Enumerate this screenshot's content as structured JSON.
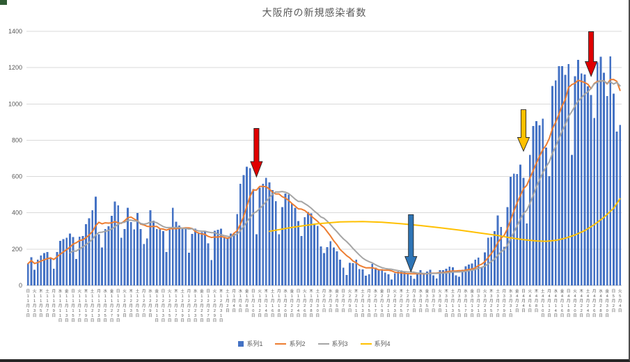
{
  "window": {
    "corner_accent_color": "#2F5B33"
  },
  "legend": {
    "position": "bottom"
  },
  "chart_data": {
    "type": "combo-bar-line",
    "title": "大阪府の新規感染者数",
    "x_start_date": "2020-11-01",
    "x_end_date": "2021-05-04",
    "x_tick_every_days": 2,
    "weekday_chars": "日月火水木金土",
    "x_label_format": "曜日 + M月D日 (vertical)",
    "ylim": [
      0,
      1400
    ],
    "ytick_step": 200,
    "grid": "horizontal-only",
    "gridline_color": "#D9D9D9",
    "axis_text_color": "#595959",
    "legend_position": "bottom",
    "series": [
      {
        "name": "系列1",
        "type": "bar",
        "color": "#4472C4",
        "values": [
          120,
          155,
          87,
          142,
          165,
          178,
          185,
          152,
          93,
          185,
          246,
          256,
          263,
          285,
          266,
          146,
          269,
          273,
          338,
          370,
          415,
          490,
          281,
          210,
          310,
          326,
          383,
          463,
          441,
          262,
          310,
          427,
          350,
          308,
          399,
          310,
          228,
          258,
          415,
          357,
          310,
          308,
          300,
          185,
          306,
          427,
          351,
          330,
          310,
          315,
          180,
          283,
          312,
          289,
          294,
          299,
          233,
          140,
          302,
          307,
          313,
          262,
          258,
          286,
          287,
          394,
          560,
          608,
          654,
          647,
          532,
          281,
          538,
          560,
          592,
          568,
          525,
          464,
          282,
          431,
          506,
          501,
          450,
          428,
          355,
          273,
          375,
          405,
          397,
          338,
          328,
          214,
          178,
          211,
          244,
          209,
          188,
          142,
          98,
          57,
          124,
          122,
          141,
          91,
          89,
          54,
          62,
          119,
          97,
          89,
          91,
          71,
          62,
          33,
          67,
          76,
          82,
          72,
          65,
          54,
          36,
          64,
          84,
          70,
          77,
          86,
          56,
          38,
          84,
          84,
          92,
          104,
          100,
          56,
          48,
          86,
          106,
          115,
          121,
          141,
          153,
          100,
          183,
          262,
          266,
          300,
          386,
          323,
          213,
          432,
          599,
          616,
          613,
          666,
          593,
          341,
          719,
          878,
          905,
          883,
          918,
          760,
          603,
          1099,
          1130,
          1208,
          1209,
          1161,
          1220,
          719,
          1153,
          1242,
          1167,
          1162,
          1097,
          1050,
          922,
          1230,
          1260,
          1171,
          1043,
          1262,
          1057,
          847,
          884
        ]
      },
      {
        "name": "系列2",
        "type": "line",
        "color": "#ED7D31",
        "derivation": "trailing 7-day mean of 系列1",
        "window": 7,
        "draw_from": 0
      },
      {
        "name": "系列3",
        "type": "line",
        "color": "#A5A5A5",
        "derivation": "trailing 14-day mean of 系列1",
        "window": 14,
        "draw_from": 13
      },
      {
        "name": "系列4",
        "type": "line",
        "color": "#FFC000",
        "points": [
          [
            75,
            298
          ],
          [
            82,
            320
          ],
          [
            90,
            340
          ],
          [
            97,
            350
          ],
          [
            104,
            352
          ],
          [
            110,
            348
          ],
          [
            116,
            340
          ],
          [
            122,
            330
          ],
          [
            128,
            318
          ],
          [
            134,
            305
          ],
          [
            140,
            290
          ],
          [
            146,
            275
          ],
          [
            150,
            262
          ],
          [
            154,
            252
          ],
          [
            158,
            245
          ],
          [
            161,
            243
          ],
          [
            164,
            248
          ],
          [
            167,
            260
          ],
          [
            170,
            278
          ],
          [
            173,
            302
          ],
          [
            176,
            335
          ],
          [
            179,
            375
          ],
          [
            182,
            425
          ],
          [
            184,
            478
          ]
        ]
      }
    ],
    "annotations": [
      {
        "shape": "down-arrow",
        "color": "#E00000",
        "index": 71,
        "value_top": 865,
        "value_tip": 598
      },
      {
        "shape": "down-arrow",
        "color": "#2E75B6",
        "index": 119,
        "value_top": 390,
        "value_tip": 75
      },
      {
        "shape": "down-arrow",
        "color": "#FFC000",
        "index": 154,
        "value_top": 968,
        "value_tip": 740
      },
      {
        "shape": "down-arrow",
        "color": "#E00000",
        "index": 175,
        "value_top": 1398,
        "value_tip": 1152
      }
    ]
  }
}
